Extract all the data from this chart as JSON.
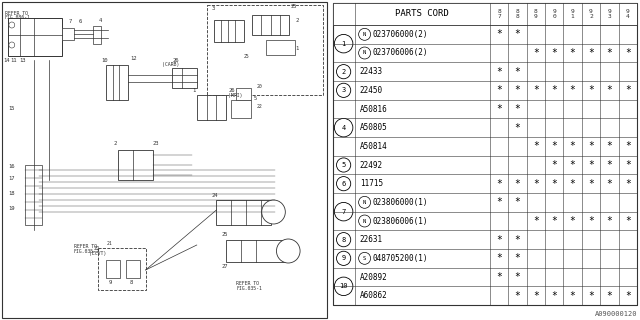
{
  "title": "",
  "part_number_label": "A090000120",
  "table_header_cols": [
    "8\n7",
    "8\n8",
    "8\n9",
    "9\n0",
    "9\n1",
    "9\n2",
    "9\n3",
    "9\n4"
  ],
  "rows": [
    {
      "num": "1",
      "parts": [
        {
          "code": "N023706000(2)",
          "prefix": "N",
          "marks": [
            1,
            1,
            0,
            0,
            0,
            0,
            0,
            0
          ]
        },
        {
          "code": "N023706006(2)",
          "prefix": "N",
          "marks": [
            0,
            0,
            1,
            1,
            1,
            1,
            1,
            1
          ]
        }
      ]
    },
    {
      "num": "2",
      "parts": [
        {
          "code": "22433",
          "prefix": "",
          "marks": [
            1,
            1,
            0,
            0,
            0,
            0,
            0,
            0
          ]
        }
      ]
    },
    {
      "num": "3",
      "parts": [
        {
          "code": "22450",
          "prefix": "",
          "marks": [
            1,
            1,
            1,
            1,
            1,
            1,
            1,
            1
          ]
        }
      ]
    },
    {
      "num": "4",
      "parts": [
        {
          "code": "A50816",
          "prefix": "",
          "marks": [
            1,
            1,
            0,
            0,
            0,
            0,
            0,
            0
          ]
        },
        {
          "code": "A50805",
          "prefix": "",
          "marks": [
            0,
            1,
            0,
            0,
            0,
            0,
            0,
            0
          ]
        },
        {
          "code": "A50814",
          "prefix": "",
          "marks": [
            0,
            0,
            1,
            1,
            1,
            1,
            1,
            1
          ]
        }
      ]
    },
    {
      "num": "5",
      "parts": [
        {
          "code": "22492",
          "prefix": "",
          "marks": [
            0,
            0,
            0,
            1,
            1,
            1,
            1,
            1
          ]
        }
      ]
    },
    {
      "num": "6",
      "parts": [
        {
          "code": "11715",
          "prefix": "",
          "marks": [
            1,
            1,
            1,
            1,
            1,
            1,
            1,
            1
          ]
        }
      ]
    },
    {
      "num": "7",
      "parts": [
        {
          "code": "N023806000(1)",
          "prefix": "N",
          "marks": [
            1,
            1,
            0,
            0,
            0,
            0,
            0,
            0
          ]
        },
        {
          "code": "N023806006(1)",
          "prefix": "N",
          "marks": [
            0,
            0,
            1,
            1,
            1,
            1,
            1,
            1
          ]
        }
      ]
    },
    {
      "num": "8",
      "parts": [
        {
          "code": "22631",
          "prefix": "",
          "marks": [
            1,
            1,
            0,
            0,
            0,
            0,
            0,
            0
          ]
        }
      ]
    },
    {
      "num": "9",
      "parts": [
        {
          "code": "S048705200(1)",
          "prefix": "S",
          "marks": [
            1,
            1,
            0,
            0,
            0,
            0,
            0,
            0
          ]
        }
      ]
    },
    {
      "num": "10",
      "parts": [
        {
          "code": "A20892",
          "prefix": "",
          "marks": [
            1,
            1,
            0,
            0,
            0,
            0,
            0,
            0
          ]
        },
        {
          "code": "A60862",
          "prefix": "",
          "marks": [
            0,
            1,
            1,
            1,
            1,
            1,
            1,
            1
          ]
        }
      ]
    }
  ],
  "bg_color": "#ffffff"
}
